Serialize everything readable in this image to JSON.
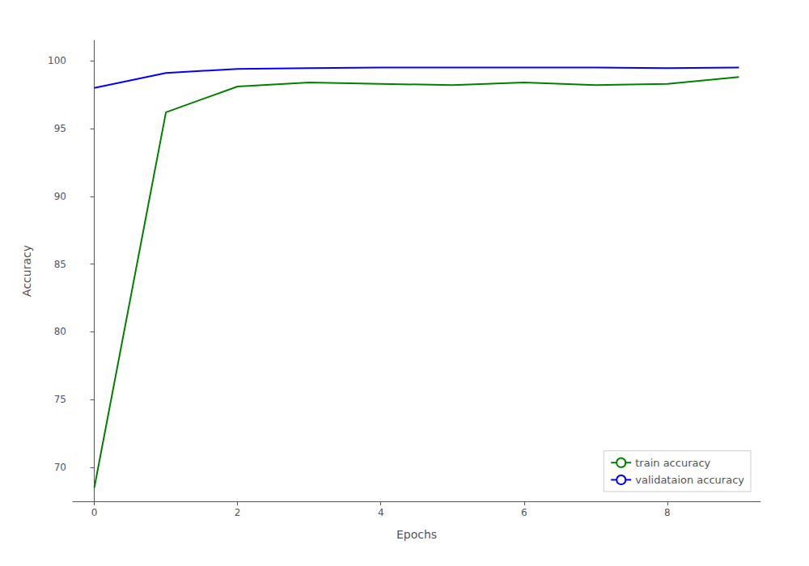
{
  "chart_data": {
    "type": "line",
    "xlabel": "Epochs",
    "ylabel": "Accuracy",
    "x": [
      0,
      1,
      2,
      3,
      4,
      5,
      6,
      7,
      8,
      9
    ],
    "series": [
      {
        "name": "train accuracy",
        "color": "#008000",
        "values": [
          68.5,
          96.2,
          98.1,
          98.4,
          98.3,
          98.2,
          98.4,
          98.2,
          98.3,
          98.8
        ]
      },
      {
        "name": "validataion accuracy",
        "color": "#0000FF",
        "values": [
          98.0,
          99.1,
          99.4,
          99.45,
          99.5,
          99.5,
          99.5,
          99.5,
          99.45,
          99.5
        ]
      }
    ],
    "xlim": [
      -0.3,
      9.3
    ],
    "ylim": [
      67.5,
      101.5
    ],
    "xticks": [
      0,
      2,
      4,
      6,
      8
    ],
    "yticks": [
      70,
      75,
      80,
      85,
      90,
      95,
      100
    ],
    "grid": false,
    "legend": "lower right"
  }
}
